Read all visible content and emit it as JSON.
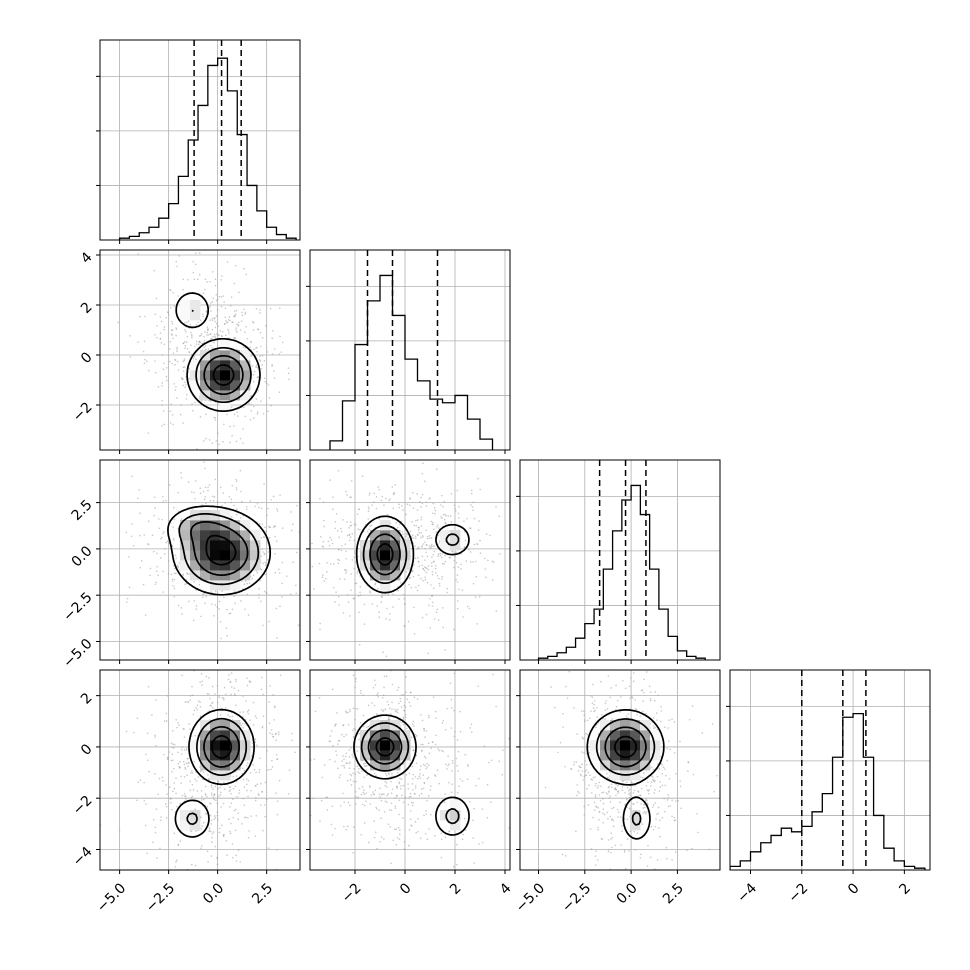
{
  "chart_data": {
    "type": "corner",
    "description_free": true,
    "params": [
      "",
      "",
      "",
      ""
    ],
    "grid": true,
    "quantiles": [
      0.16,
      0.5,
      0.84
    ],
    "colors": {
      "hist": "#000000",
      "contour": "#000000",
      "grid": "#b0b0b0",
      "scatter": "#9a9a9a",
      "quantile_line": "#000000"
    },
    "ranges": [
      [
        -6.0,
        4.2
      ],
      [
        -3.8,
        4.2
      ],
      [
        -6.0,
        4.8
      ],
      [
        -4.8,
        3.0
      ]
    ],
    "ticks": [
      {
        "values": [
          -5.0,
          -2.5,
          0.0,
          2.5
        ],
        "labels": [
          "−5.0",
          "−2.5",
          "0.0",
          "2.5"
        ]
      },
      {
        "values": [
          -2,
          0,
          2,
          4
        ],
        "labels": [
          "−2",
          "0",
          "2",
          "4"
        ]
      },
      {
        "values": [
          -5.0,
          -2.5,
          0.0,
          2.5
        ],
        "labels": [
          "−5.0",
          "−2.5",
          "0.0",
          "2.5"
        ]
      },
      {
        "values": [
          -4,
          -2,
          0,
          2
        ],
        "labels": [
          "−4",
          "−2",
          "0",
          "2"
        ]
      }
    ],
    "hist_ymax": 1.0,
    "hist_yticks": [
      0.3,
      0.6,
      0.9
    ],
    "histograms": [
      {
        "bin_edges": [
          -5.0,
          -4.5,
          -4.0,
          -3.5,
          -3.0,
          -2.5,
          -2.0,
          -1.5,
          -1.0,
          -0.5,
          0.0,
          0.5,
          1.0,
          1.5,
          2.0,
          2.5,
          3.0,
          3.5,
          4.0
        ],
        "counts": [
          0.01,
          0.02,
          0.04,
          0.07,
          0.12,
          0.2,
          0.35,
          0.55,
          0.74,
          0.96,
          1.0,
          0.82,
          0.58,
          0.3,
          0.16,
          0.07,
          0.03,
          0.01
        ],
        "quantile_values": [
          -1.2,
          0.2,
          1.2
        ]
      },
      {
        "bin_edges": [
          -3.0,
          -2.5,
          -2.0,
          -1.5,
          -1.0,
          -0.5,
          0.0,
          0.5,
          1.0,
          1.5,
          2.0,
          2.5,
          3.0,
          3.5
        ],
        "counts": [
          0.05,
          0.27,
          0.58,
          0.82,
          0.96,
          0.74,
          0.5,
          0.38,
          0.28,
          0.26,
          0.3,
          0.17,
          0.06
        ],
        "quantile_values": [
          -1.5,
          -0.5,
          1.3
        ]
      },
      {
        "bin_edges": [
          -5.0,
          -4.5,
          -4.0,
          -3.5,
          -3.0,
          -2.5,
          -2.0,
          -1.5,
          -1.0,
          -0.5,
          0.0,
          0.5,
          1.0,
          1.5,
          2.0,
          2.5,
          3.0,
          3.5,
          4.0
        ],
        "counts": [
          0.01,
          0.02,
          0.04,
          0.07,
          0.12,
          0.2,
          0.28,
          0.5,
          0.71,
          0.88,
          0.96,
          0.8,
          0.5,
          0.28,
          0.13,
          0.05,
          0.02,
          0.01
        ],
        "quantile_values": [
          -1.7,
          -0.3,
          0.8
        ]
      },
      {
        "bin_edges": [
          -4.8,
          -4.4,
          -4.0,
          -3.6,
          -3.2,
          -2.8,
          -2.4,
          -2.0,
          -1.6,
          -1.2,
          -0.8,
          -0.4,
          0.0,
          0.4,
          0.8,
          1.2,
          1.6,
          2.0,
          2.4,
          2.8
        ],
        "counts": [
          0.02,
          0.05,
          0.1,
          0.15,
          0.19,
          0.23,
          0.21,
          0.24,
          0.32,
          0.42,
          0.62,
          0.84,
          0.86,
          0.62,
          0.3,
          0.12,
          0.05,
          0.02,
          0.01
        ],
        "quantile_values": [
          -2.0,
          -0.4,
          0.5
        ]
      }
    ],
    "joint": {
      "1-0": {
        "components": [
          {
            "mx": 0.3,
            "my": -0.8,
            "sx": 0.9,
            "sy": 0.7,
            "w": 1.0
          },
          {
            "mx": -1.3,
            "my": 1.8,
            "sx": 0.6,
            "sy": 0.5,
            "w": 0.3
          }
        ],
        "scatter_center": [
          0.0,
          0.0
        ],
        "scatter_spread": [
          1.5,
          1.3
        ]
      },
      "2-0": {
        "components": [
          {
            "mx": 0.2,
            "my": -0.2,
            "sx": 1.2,
            "sy": 1.1,
            "w": 1.0
          },
          {
            "mx": -1.0,
            "my": 1.2,
            "sx": 0.9,
            "sy": 0.6,
            "w": 0.35
          }
        ],
        "scatter_center": [
          0.0,
          -0.5
        ],
        "scatter_spread": [
          1.6,
          1.6
        ]
      },
      "2-1": {
        "components": [
          {
            "mx": -0.8,
            "my": -0.3,
            "sx": 0.55,
            "sy": 1.0,
            "w": 1.0
          },
          {
            "mx": 1.9,
            "my": 0.5,
            "sx": 0.45,
            "sy": 0.55,
            "w": 0.35
          }
        ],
        "scatter_center": [
          -0.2,
          -0.3
        ],
        "scatter_spread": [
          1.4,
          1.7
        ]
      },
      "3-0": {
        "components": [
          {
            "mx": 0.2,
            "my": 0.0,
            "sx": 0.8,
            "sy": 0.7,
            "w": 1.0
          },
          {
            "mx": -1.3,
            "my": -2.8,
            "sx": 0.6,
            "sy": 0.5,
            "w": 0.32
          }
        ],
        "scatter_center": [
          0.0,
          -0.7
        ],
        "scatter_spread": [
          1.5,
          1.6
        ]
      },
      "3-1": {
        "components": [
          {
            "mx": -0.8,
            "my": 0.0,
            "sx": 0.6,
            "sy": 0.6,
            "w": 1.0
          },
          {
            "mx": 1.9,
            "my": -2.7,
            "sx": 0.45,
            "sy": 0.5,
            "w": 0.35
          }
        ],
        "scatter_center": [
          -0.3,
          -0.6
        ],
        "scatter_spread": [
          1.3,
          1.5
        ]
      },
      "3-2": {
        "components": [
          {
            "mx": -0.3,
            "my": 0.0,
            "sx": 1.0,
            "sy": 0.7,
            "w": 1.0
          },
          {
            "mx": 0.3,
            "my": -2.8,
            "sx": 0.5,
            "sy": 0.55,
            "w": 0.33
          }
        ],
        "scatter_center": [
          -0.3,
          -0.7
        ],
        "scatter_spread": [
          1.4,
          1.5
        ]
      }
    }
  }
}
